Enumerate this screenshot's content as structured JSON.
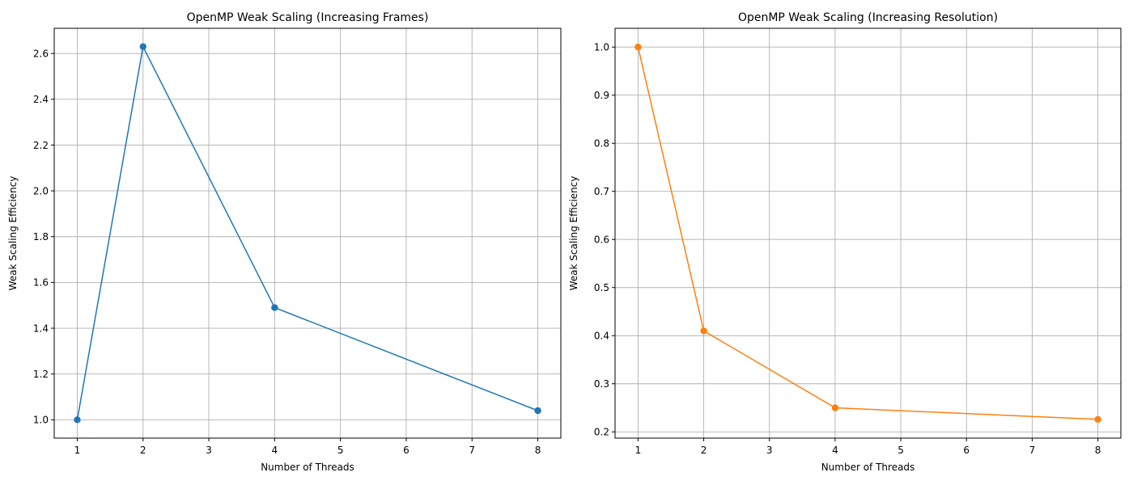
{
  "chart_data": [
    {
      "type": "line",
      "title": "OpenMP Weak Scaling (Increasing Frames)",
      "xlabel": "Number of Threads",
      "ylabel": "Weak Scaling Efficiency",
      "xlim": [
        0.65,
        8.35
      ],
      "ylim": [
        0.92,
        2.71
      ],
      "xticks": [
        1,
        2,
        3,
        4,
        5,
        6,
        7,
        8
      ],
      "yticks": [
        1.0,
        1.2,
        1.4,
        1.6,
        1.8,
        2.0,
        2.2,
        2.4,
        2.6
      ],
      "grid": true,
      "series": [
        {
          "color": "#1f77b4",
          "marker": "circle",
          "x": [
            1,
            2,
            4,
            8
          ],
          "y": [
            1.0,
            2.63,
            1.49,
            1.04
          ]
        }
      ]
    },
    {
      "type": "line",
      "title": "OpenMP Weak Scaling (Increasing Resolution)",
      "xlabel": "Number of Threads",
      "ylabel": "Weak Scaling Efficiency",
      "xlim": [
        0.65,
        8.35
      ],
      "ylim": [
        0.187,
        1.039
      ],
      "xticks": [
        1,
        2,
        3,
        4,
        5,
        6,
        7,
        8
      ],
      "yticks": [
        0.2,
        0.3,
        0.4,
        0.5,
        0.6,
        0.7,
        0.8,
        0.9,
        1.0
      ],
      "grid": true,
      "series": [
        {
          "color": "#ff7f0e",
          "marker": "circle",
          "x": [
            1,
            2,
            4,
            8
          ],
          "y": [
            1.0,
            0.41,
            0.25,
            0.226
          ]
        }
      ]
    }
  ]
}
